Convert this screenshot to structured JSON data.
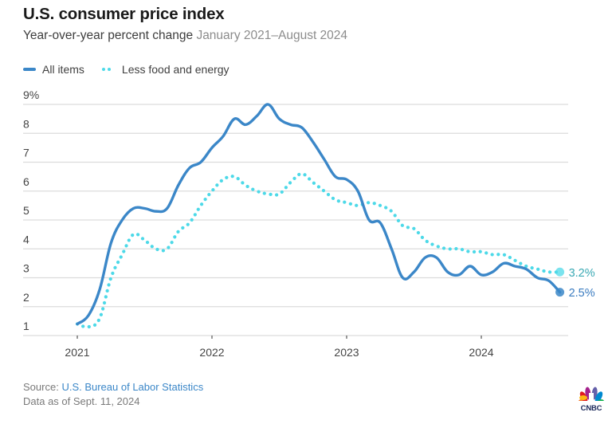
{
  "header": {
    "title": "U.S. consumer price index",
    "subtitle": "Year-over-year percent change",
    "date_range": "January 2021–August 2024"
  },
  "colors": {
    "all_items": "#3b87c8",
    "core": "#4dd9e8",
    "core_label": "#3aa9b4",
    "all_items_label": "#3b7cc0",
    "grid": "#dcdcdc"
  },
  "footer": {
    "source_label": "Source:",
    "source_link": "U.S. Bureau of Labor Statistics",
    "data_as_of": "Data as of Sept. 11, 2024"
  },
  "logo": {
    "text": "CNBC",
    "icon": "peacock-icon"
  },
  "chart_data": {
    "type": "line",
    "title": "U.S. consumer price index",
    "subtitle": "Year-over-year percent change January 2021–August 2024",
    "xlabel": "",
    "ylabel": "",
    "ylim": [
      1,
      9
    ],
    "yticks": [
      1,
      2,
      3,
      4,
      5,
      6,
      7,
      8,
      9
    ],
    "ytick_labels": [
      "1",
      "2",
      "3",
      "4",
      "5",
      "6",
      "7",
      "8",
      "9%"
    ],
    "xticks": [
      "2021",
      "2022",
      "2023",
      "2024"
    ],
    "x_start": "2021-01",
    "x_end": "2024-08",
    "grid": true,
    "legend_position": "top-left",
    "series": [
      {
        "name": "All items",
        "style": "solid",
        "end_label": "2.5%",
        "values": [
          1.4,
          1.7,
          2.6,
          4.2,
          5.0,
          5.4,
          5.4,
          5.3,
          5.4,
          6.2,
          6.8,
          7.0,
          7.5,
          7.9,
          8.5,
          8.3,
          8.6,
          9.0,
          8.5,
          8.3,
          8.2,
          7.7,
          7.1,
          6.5,
          6.4,
          6.0,
          5.0,
          4.9,
          4.0,
          3.0,
          3.2,
          3.7,
          3.7,
          3.2,
          3.1,
          3.4,
          3.1,
          3.2,
          3.5,
          3.4,
          3.3,
          3.0,
          2.9,
          2.5
        ]
      },
      {
        "name": "Less food and energy",
        "style": "dotted",
        "end_label": "3.2%",
        "values": [
          1.4,
          1.3,
          1.6,
          3.0,
          3.8,
          4.5,
          4.3,
          4.0,
          4.0,
          4.6,
          4.9,
          5.5,
          6.0,
          6.4,
          6.5,
          6.2,
          6.0,
          5.9,
          5.9,
          6.3,
          6.6,
          6.3,
          6.0,
          5.7,
          5.6,
          5.5,
          5.6,
          5.5,
          5.3,
          4.8,
          4.7,
          4.3,
          4.1,
          4.0,
          4.0,
          3.9,
          3.9,
          3.8,
          3.8,
          3.6,
          3.4,
          3.3,
          3.2,
          3.2
        ]
      }
    ]
  }
}
